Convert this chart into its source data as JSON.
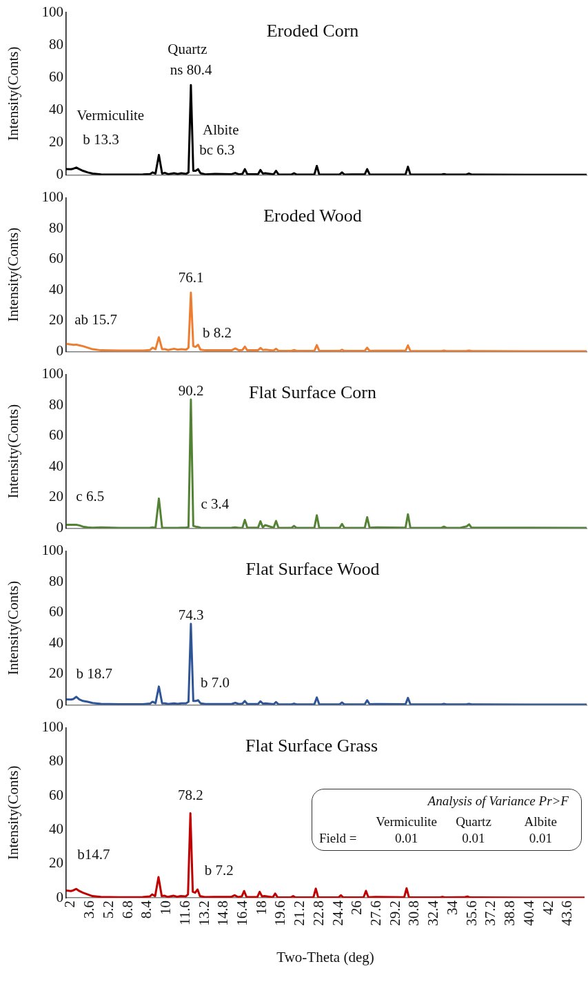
{
  "chart_data": [
    {
      "type": "line",
      "title": "Eroded Corn",
      "ylabel": "Intensity(Conts)",
      "tick_labels": "y",
      "grid": false,
      "legend": false,
      "marker": "none",
      "xlim": [
        1.6,
        45
      ],
      "xticks": [
        2,
        3.6,
        5.2,
        6.8,
        8.4,
        10,
        11.6,
        13.2,
        14.8,
        16.4,
        18,
        19.6,
        21.2,
        22.8,
        24.4,
        26,
        27.6,
        29.2,
        30.8,
        32.4,
        34,
        35.6,
        37.2,
        38.8,
        40.4,
        42,
        43.6
      ],
      "ylim": [
        0,
        100
      ],
      "yticks": [
        0,
        20,
        40,
        60,
        80,
        100
      ],
      "x": [
        1.6,
        2.0,
        2.2,
        2.45,
        2.7,
        3.0,
        3.4,
        3.8,
        4.5,
        6,
        8.0,
        8.6,
        8.8,
        9.05,
        9.33,
        9.6,
        9.85,
        10.1,
        10.6,
        10.9,
        11.2,
        11.6,
        11.8,
        12.0,
        12.2,
        12.4,
        12.6,
        12.8,
        13.2,
        14.0,
        15.4,
        15.7,
        16.0,
        16.3,
        16.5,
        16.7,
        17.6,
        17.8,
        18.0,
        18.2,
        18.9,
        19.1,
        19.3,
        20.4,
        20.6,
        20.8,
        22.3,
        22.5,
        22.7,
        24.4,
        24.6,
        24.8,
        26.5,
        26.7,
        26.9,
        27.5,
        29.9,
        30.1,
        30.3,
        32.9,
        33.1,
        33.3,
        34.5,
        35.0,
        35.2,
        35.4,
        36,
        40,
        45
      ],
      "series": [
        {
          "color": "#000000",
          "values": [
            3.6,
            3.5,
            3.8,
            4.5,
            3.5,
            2.5,
            1.5,
            0.8,
            0.3,
            0.2,
            0.3,
            0.5,
            1.5,
            0.8,
            12.3,
            0.8,
            1.2,
            0.4,
            1.0,
            0.5,
            1.0,
            0.6,
            1.5,
            55.3,
            2.5,
            2.5,
            3.5,
            1.0,
            0.3,
            0.6,
            0.4,
            1.2,
            0.3,
            0.6,
            3.5,
            0.5,
            0.4,
            3.0,
            0.8,
            1.0,
            0.3,
            2.5,
            0.3,
            0.2,
            1.0,
            0.2,
            0.3,
            5.5,
            0.3,
            0.2,
            1.5,
            0.2,
            0.3,
            3.5,
            0.3,
            0.2,
            0.3,
            5.0,
            0.3,
            0.2,
            0.5,
            0.2,
            0.2,
            0.3,
            0.8,
            0.2,
            0.2,
            0.1,
            0.1
          ]
        }
      ],
      "annotations": [
        "Vermiculite",
        "b 13.3",
        "Quartz",
        "ns 80.4",
        "Albite",
        "bc 6.3"
      ]
    },
    {
      "type": "line",
      "title": "Eroded Wood",
      "ylabel": "Intensity(Conts)",
      "tick_labels": "y",
      "grid": false,
      "legend": false,
      "marker": "none",
      "xlim": [
        1.6,
        45
      ],
      "xticks": [
        2,
        3.6,
        5.2,
        6.8,
        8.4,
        10,
        11.6,
        13.2,
        14.8,
        16.4,
        18,
        19.6,
        21.2,
        22.8,
        24.4,
        26,
        27.6,
        29.2,
        30.8,
        32.4,
        34,
        35.6,
        37.2,
        38.8,
        40.4,
        42,
        43.6
      ],
      "ylim": [
        0,
        100
      ],
      "yticks": [
        0,
        20,
        40,
        60,
        80,
        100
      ],
      "x": [
        1.6,
        2.0,
        2.2,
        2.45,
        2.7,
        3.0,
        3.4,
        3.8,
        4.5,
        6,
        8.0,
        8.6,
        8.8,
        9.05,
        9.33,
        9.6,
        9.85,
        10.1,
        10.6,
        10.9,
        11.2,
        11.6,
        11.8,
        12.0,
        12.2,
        12.4,
        12.6,
        12.8,
        13.2,
        14.0,
        15.4,
        15.7,
        16.0,
        16.3,
        16.5,
        16.7,
        17.6,
        17.8,
        18.0,
        18.2,
        18.9,
        19.1,
        19.3,
        20.4,
        20.6,
        20.8,
        22.3,
        22.5,
        22.7,
        24.4,
        24.6,
        24.8,
        26.5,
        26.7,
        26.9,
        27.5,
        29.9,
        30.1,
        30.3,
        32.9,
        33.1,
        33.3,
        34.5,
        35.0,
        35.2,
        35.4,
        36,
        40,
        45
      ],
      "series": [
        {
          "color": "#ed7d31",
          "values": [
            5.0,
            4.6,
            4.3,
            4.5,
            4.0,
            3.5,
            2.5,
            1.5,
            0.8,
            0.6,
            0.6,
            1.0,
            2.5,
            1.5,
            9.3,
            1.5,
            1.5,
            1.0,
            1.8,
            1.2,
            1.5,
            1.2,
            2.5,
            38.3,
            3.5,
            3.0,
            4.4,
            1.2,
            0.8,
            0.8,
            0.8,
            2.0,
            0.8,
            1.0,
            3.2,
            0.8,
            0.8,
            2.3,
            1.0,
            1.2,
            0.6,
            1.8,
            0.5,
            0.4,
            1.0,
            0.4,
            0.5,
            4.2,
            0.5,
            0.4,
            1.2,
            0.4,
            0.4,
            2.5,
            0.4,
            0.5,
            0.5,
            4.0,
            0.4,
            0.3,
            0.6,
            0.3,
            0.3,
            0.4,
            0.6,
            0.3,
            0.3,
            0.2,
            0.2
          ]
        }
      ],
      "annotations": [
        "76.1",
        "ab 15.7",
        "b 8.2"
      ]
    },
    {
      "type": "line",
      "title": "Flat Surface Corn",
      "ylabel": "Intensity(Conts)",
      "tick_labels": "y",
      "grid": false,
      "legend": false,
      "marker": "none",
      "xlim": [
        1.6,
        45
      ],
      "xticks": [
        2,
        3.6,
        5.2,
        6.8,
        8.4,
        10,
        11.6,
        13.2,
        14.8,
        16.4,
        18,
        19.6,
        21.2,
        22.8,
        24.4,
        26,
        27.6,
        29.2,
        30.8,
        32.4,
        34,
        35.6,
        37.2,
        38.8,
        40.4,
        42,
        43.6
      ],
      "ylim": [
        0,
        100
      ],
      "yticks": [
        0,
        20,
        40,
        60,
        80,
        100
      ],
      "x": [
        1.6,
        2.0,
        2.2,
        2.45,
        2.7,
        3.0,
        3.4,
        3.8,
        4.5,
        6,
        8.0,
        8.6,
        8.8,
        9.05,
        9.33,
        9.6,
        9.85,
        10.1,
        10.6,
        10.9,
        11.2,
        11.6,
        11.8,
        12.0,
        12.2,
        12.4,
        12.6,
        12.8,
        13.2,
        14.0,
        15.4,
        15.7,
        16.0,
        16.3,
        16.5,
        16.7,
        17.6,
        17.8,
        18.0,
        18.2,
        18.9,
        19.1,
        19.3,
        20.4,
        20.6,
        20.8,
        22.3,
        22.5,
        22.7,
        24.4,
        24.6,
        24.8,
        26.5,
        26.7,
        26.9,
        27.5,
        29.9,
        30.1,
        30.3,
        32.9,
        33.1,
        33.3,
        34.5,
        35.0,
        35.2,
        35.4,
        36,
        40,
        45
      ],
      "series": [
        {
          "color": "#548235",
          "values": [
            2.2,
            2.2,
            2.2,
            2.2,
            1.8,
            1.0,
            0.5,
            0.3,
            0.5,
            0.2,
            0.2,
            0.3,
            0.5,
            0.3,
            19.3,
            0.3,
            0.2,
            0.2,
            0.2,
            0.2,
            0.3,
            0.3,
            0.8,
            83.7,
            1.5,
            1.0,
            0.8,
            0.3,
            0.2,
            0.2,
            0.3,
            0.5,
            0.2,
            0.3,
            5.4,
            0.3,
            0.3,
            4.5,
            0.5,
            2.0,
            0.3,
            4.7,
            0.3,
            0.2,
            1.5,
            0.2,
            0.3,
            8.4,
            0.3,
            0.2,
            2.7,
            0.2,
            0.3,
            7.1,
            0.3,
            0.5,
            0.3,
            9.0,
            0.3,
            0.2,
            1.0,
            0.2,
            0.3,
            1.2,
            2.5,
            0.3,
            0.3,
            0.3,
            0.2
          ]
        }
      ],
      "annotations": [
        "90.2",
        "c 6.5",
        "c 3.4"
      ]
    },
    {
      "type": "line",
      "title": "Flat Surface Wood",
      "ylabel": "Intensity(Conts)",
      "tick_labels": "y",
      "grid": false,
      "legend": false,
      "marker": "none",
      "xlim": [
        1.6,
        45
      ],
      "xticks": [
        2,
        3.6,
        5.2,
        6.8,
        8.4,
        10,
        11.6,
        13.2,
        14.8,
        16.4,
        18,
        19.6,
        21.2,
        22.8,
        24.4,
        26,
        27.6,
        29.2,
        30.8,
        32.4,
        34,
        35.6,
        37.2,
        38.8,
        40.4,
        42,
        43.6
      ],
      "ylim": [
        0,
        100
      ],
      "yticks": [
        0,
        20,
        40,
        60,
        80,
        100
      ],
      "x": [
        1.6,
        2.0,
        2.2,
        2.45,
        2.7,
        3.0,
        3.4,
        3.8,
        4.5,
        6,
        8.0,
        8.6,
        8.8,
        9.05,
        9.33,
        9.6,
        9.85,
        10.1,
        10.6,
        10.9,
        11.2,
        11.6,
        11.8,
        12.0,
        12.2,
        12.4,
        12.6,
        12.8,
        13.2,
        14.0,
        15.4,
        15.7,
        16.0,
        16.3,
        16.5,
        16.7,
        17.6,
        17.8,
        18.0,
        18.2,
        18.9,
        19.1,
        19.3,
        20.4,
        20.6,
        20.8,
        22.3,
        22.5,
        22.7,
        24.4,
        24.6,
        24.8,
        26.5,
        26.7,
        26.9,
        27.5,
        29.9,
        30.1,
        30.3,
        32.9,
        33.1,
        33.3,
        34.5,
        35.0,
        35.2,
        35.4,
        36,
        40,
        45
      ],
      "series": [
        {
          "color": "#2f5597",
          "values": [
            3.5,
            3.4,
            3.8,
            5.2,
            3.5,
            2.5,
            2.0,
            1.2,
            0.6,
            0.4,
            0.4,
            0.8,
            2.0,
            1.0,
            11.9,
            1.0,
            1.0,
            0.5,
            1.0,
            0.6,
            1.0,
            1.0,
            2.0,
            52.7,
            2.5,
            2.5,
            3.0,
            1.0,
            0.5,
            0.5,
            0.5,
            1.3,
            0.5,
            0.8,
            2.5,
            0.5,
            0.5,
            2.3,
            0.8,
            1.0,
            0.4,
            1.8,
            0.4,
            0.3,
            0.8,
            0.3,
            0.4,
            4.8,
            0.4,
            0.3,
            1.5,
            0.3,
            0.4,
            3.0,
            0.4,
            0.5,
            0.4,
            4.5,
            0.4,
            0.3,
            0.6,
            0.3,
            0.3,
            0.4,
            0.6,
            0.3,
            0.3,
            0.2,
            0.2
          ]
        }
      ],
      "annotations": [
        "74.3",
        "b 18.7",
        "b 7.0"
      ]
    },
    {
      "type": "line",
      "title": "Flat Surface Grass",
      "xlabel": "Two-Theta (deg)",
      "ylabel": "Intensity(Conts)",
      "grid": false,
      "legend": false,
      "marker": "none",
      "xlim": [
        1.6,
        45
      ],
      "xticks": [
        2,
        3.6,
        5.2,
        6.8,
        8.4,
        10,
        11.6,
        13.2,
        14.8,
        16.4,
        18,
        19.6,
        21.2,
        22.8,
        24.4,
        26,
        27.6,
        29.2,
        30.8,
        32.4,
        34,
        35.6,
        37.2,
        38.8,
        40.4,
        42,
        43.6
      ],
      "ylim": [
        0,
        100
      ],
      "yticks": [
        0,
        20,
        40,
        60,
        80,
        100
      ],
      "x": [
        1.6,
        2.0,
        2.2,
        2.45,
        2.7,
        3.0,
        3.4,
        3.8,
        4.5,
        6,
        8.0,
        8.6,
        8.8,
        9.05,
        9.33,
        9.6,
        9.85,
        10.1,
        10.6,
        10.9,
        11.2,
        11.6,
        11.8,
        12.0,
        12.2,
        12.4,
        12.6,
        12.8,
        13.2,
        14.0,
        15.4,
        15.7,
        16.0,
        16.3,
        16.5,
        16.7,
        17.6,
        17.8,
        18.0,
        18.2,
        18.9,
        19.1,
        19.3,
        20.4,
        20.6,
        20.8,
        22.3,
        22.5,
        22.7,
        24.4,
        24.6,
        24.8,
        26.5,
        26.7,
        26.9,
        27.5,
        29.9,
        30.1,
        30.3,
        32.9,
        33.1,
        33.3,
        34.5,
        35.0,
        35.2,
        35.4,
        36,
        40,
        45
      ],
      "series": [
        {
          "color": "#c00000",
          "values": [
            4.3,
            4.0,
            4.4,
            5.2,
            4.0,
            3.0,
            2.0,
            1.0,
            0.5,
            0.3,
            0.4,
            0.8,
            2.0,
            1.0,
            12.2,
            1.0,
            1.2,
            0.5,
            1.2,
            0.6,
            1.0,
            0.8,
            2.0,
            49.7,
            3.5,
            3.0,
            4.9,
            1.0,
            0.4,
            0.5,
            0.5,
            1.5,
            0.4,
            0.8,
            4.0,
            0.5,
            0.4,
            3.5,
            0.8,
            1.0,
            0.3,
            2.5,
            0.3,
            0.2,
            1.0,
            0.2,
            0.3,
            5.4,
            0.3,
            0.2,
            1.5,
            0.2,
            0.3,
            4.1,
            0.3,
            0.5,
            0.3,
            5.6,
            0.3,
            0.2,
            0.6,
            0.2,
            0.3,
            0.4,
            0.8,
            0.2,
            0.2,
            0.1,
            0.1
          ]
        }
      ],
      "annotations": [
        "78.2",
        "b14.7",
        "b 7.2",
        "Analysis of Variance Pr>F",
        "Vermiculite",
        "Quartz",
        "Albite",
        "Field =",
        "0.01",
        "0.01",
        "0.01"
      ]
    }
  ]
}
